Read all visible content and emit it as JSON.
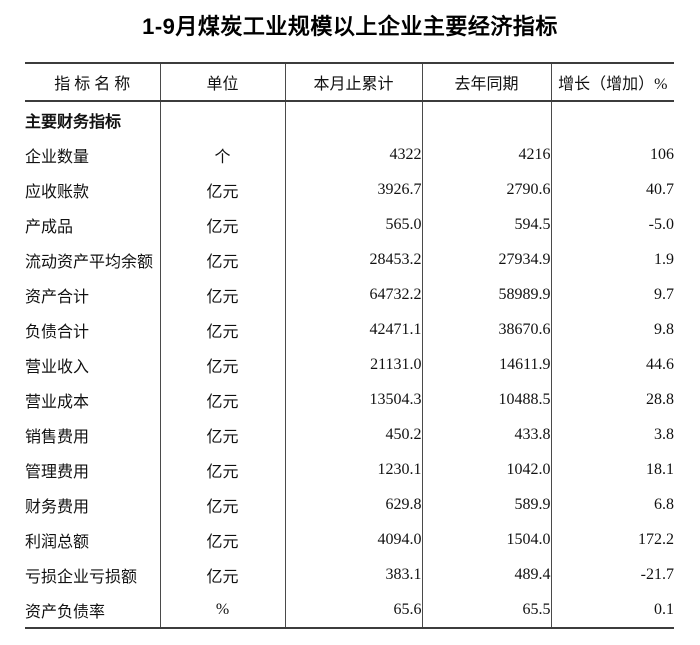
{
  "title": "1-9月煤炭工业规模以上企业主要经济指标",
  "table": {
    "columns": [
      "指 标 名 称",
      "单位",
      "本月止累计",
      "去年同期",
      "增长（增加）%"
    ],
    "section_header": "主要财务指标",
    "rows": [
      {
        "name": "企业数量",
        "unit": "个",
        "current": "4322",
        "last_year": "4216",
        "growth": "106"
      },
      {
        "name": "应收账款",
        "unit": "亿元",
        "current": "3926.7",
        "last_year": "2790.6",
        "growth": "40.7"
      },
      {
        "name": "产成品",
        "unit": "亿元",
        "current": "565.0",
        "last_year": "594.5",
        "growth": "-5.0"
      },
      {
        "name": "流动资产平均余额",
        "unit": "亿元",
        "current": "28453.2",
        "last_year": "27934.9",
        "growth": "1.9"
      },
      {
        "name": "资产合计",
        "unit": "亿元",
        "current": "64732.2",
        "last_year": "58989.9",
        "growth": "9.7"
      },
      {
        "name": "负债合计",
        "unit": "亿元",
        "current": "42471.1",
        "last_year": "38670.6",
        "growth": "9.8"
      },
      {
        "name": "营业收入",
        "unit": "亿元",
        "current": "21131.0",
        "last_year": "14611.9",
        "growth": "44.6"
      },
      {
        "name": "营业成本",
        "unit": "亿元",
        "current": "13504.3",
        "last_year": "10488.5",
        "growth": "28.8"
      },
      {
        "name": "销售费用",
        "unit": "亿元",
        "current": "450.2",
        "last_year": "433.8",
        "growth": "3.8"
      },
      {
        "name": "管理费用",
        "unit": "亿元",
        "current": "1230.1",
        "last_year": "1042.0",
        "growth": "18.1"
      },
      {
        "name": "财务费用",
        "unit": "亿元",
        "current": "629.8",
        "last_year": "589.9",
        "growth": "6.8"
      },
      {
        "name": "利润总额",
        "unit": "亿元",
        "current": "4094.0",
        "last_year": "1504.0",
        "growth": "172.2"
      },
      {
        "name": "亏损企业亏损额",
        "unit": "亿元",
        "current": "383.1",
        "last_year": "489.4",
        "growth": "-21.7"
      },
      {
        "name": "资产负债率",
        "unit": "%",
        "current": "65.6",
        "last_year": "65.5",
        "growth": "0.1"
      }
    ]
  },
  "colors": {
    "background": "#ffffff",
    "text": "#111111",
    "border": "#3c3c3c"
  }
}
